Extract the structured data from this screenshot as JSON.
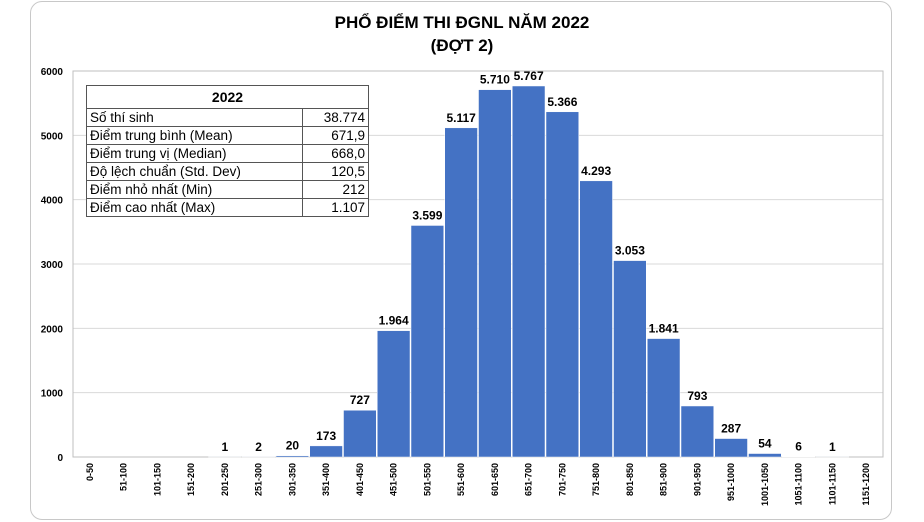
{
  "chart_data": {
    "type": "bar",
    "title": "PHỔ ĐIỂM THI ĐGNL NĂM 2022",
    "subtitle": "(ĐỢT 2)",
    "categories": [
      "0-50",
      "51-100",
      "101-150",
      "151-200",
      "201-250",
      "251-300",
      "301-350",
      "351-400",
      "401-450",
      "451-500",
      "501-550",
      "551-600",
      "601-650",
      "651-700",
      "701-750",
      "751-800",
      "801-850",
      "851-900",
      "901-950",
      "951-1000",
      "1001-1050",
      "1051-1100",
      "1101-1150",
      "1151-1200"
    ],
    "values": [
      0,
      0,
      0,
      0,
      1,
      2,
      20,
      173,
      727,
      1964,
      3599,
      5117,
      5710,
      5767,
      5366,
      4293,
      3053,
      1841,
      793,
      287,
      54,
      6,
      1,
      0
    ],
    "data_labels": [
      "",
      "",
      "",
      "",
      "1",
      "2",
      "20",
      "173",
      "727",
      "1.964",
      "3.599",
      "5.117",
      "5.710",
      "5.767",
      "5.366",
      "4.293",
      "3.053",
      "1.841",
      "793",
      "287",
      "54",
      "6",
      "1",
      ""
    ],
    "ylim": [
      0,
      6000
    ],
    "yticks": [
      "0",
      "1000",
      "2000",
      "3000",
      "4000",
      "5000",
      "6000"
    ],
    "xlabel": "",
    "ylabel": "",
    "grid": true,
    "bar_color": "#4472c4"
  },
  "stats_table": {
    "header": "2022",
    "rows": [
      {
        "label": "Số thí sinh",
        "value": "38.774"
      },
      {
        "label": "Điểm trung bình (Mean)",
        "value": "671,9"
      },
      {
        "label": "Điểm trung vị (Median)",
        "value": "668,0"
      },
      {
        "label": "Độ lệch chuẩn (Std. Dev)",
        "value": "120,5"
      },
      {
        "label": "Điểm nhỏ nhất (Min)",
        "value": "212"
      },
      {
        "label": "Điểm cao nhất (Max)",
        "value": "1.107"
      }
    ]
  }
}
